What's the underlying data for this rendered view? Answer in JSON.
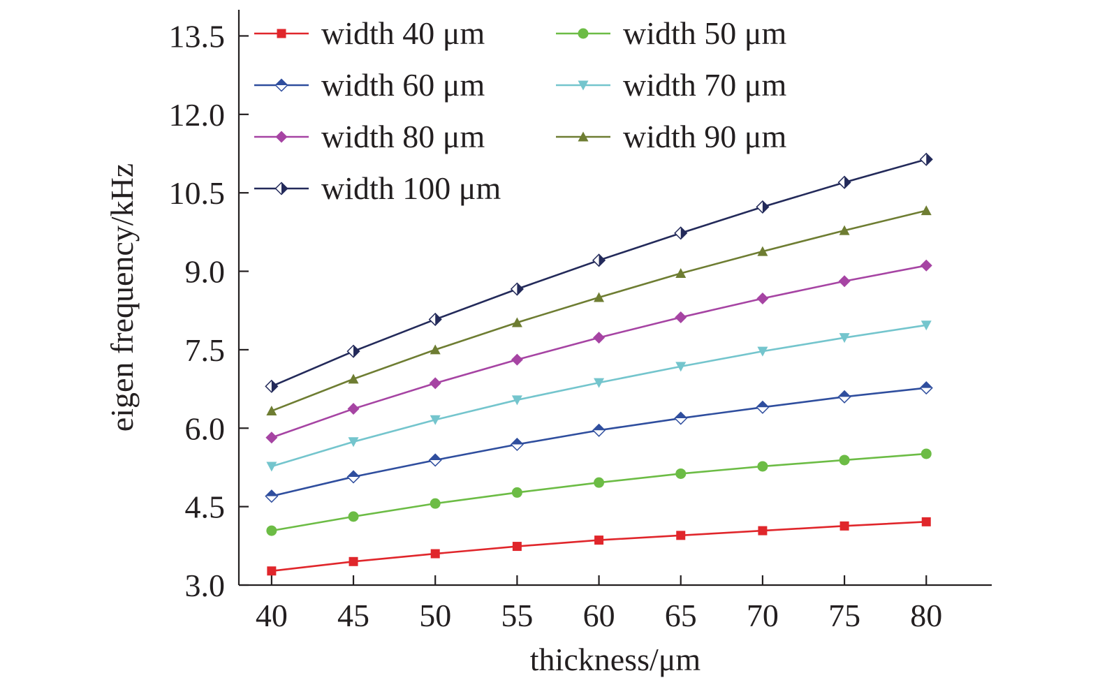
{
  "chart_data": {
    "type": "line",
    "xlabel": "thickness/μm",
    "ylabel": "eigen frequency/kHz",
    "x": [
      40,
      45,
      50,
      55,
      60,
      65,
      70,
      75,
      80
    ],
    "xlim": [
      38,
      84
    ],
    "ylim": [
      3.0,
      14.0
    ],
    "x_ticks": [
      "40",
      "45",
      "50",
      "55",
      "60",
      "65",
      "70",
      "75",
      "80"
    ],
    "y_ticks": [
      "3.0",
      "4.5",
      "6.0",
      "7.5",
      "9.0",
      "10.5",
      "12.0",
      "13.5"
    ],
    "grid": false,
    "legend_position": "top-left",
    "series": [
      {
        "name": "width 40 μm",
        "color": "#e0262b",
        "marker": "square",
        "values": [
          3.27,
          3.45,
          3.6,
          3.74,
          3.86,
          3.95,
          4.04,
          4.13,
          4.21
        ]
      },
      {
        "name": "width 50 μm",
        "color": "#6cbc45",
        "marker": "circle",
        "values": [
          4.04,
          4.31,
          4.56,
          4.77,
          4.96,
          5.13,
          5.27,
          5.39,
          5.51
        ]
      },
      {
        "name": "width 60 μm",
        "color": "#2f4e9e",
        "marker": "diamond-half",
        "values": [
          4.7,
          5.07,
          5.39,
          5.69,
          5.96,
          6.19,
          6.4,
          6.6,
          6.77
        ]
      },
      {
        "name": "width 70 μm",
        "color": "#74c5cd",
        "marker": "triangle-down",
        "values": [
          5.27,
          5.74,
          6.16,
          6.54,
          6.87,
          7.18,
          7.47,
          7.73,
          7.97
        ]
      },
      {
        "name": "width 80 μm",
        "color": "#a644a3",
        "marker": "diamond",
        "values": [
          5.82,
          6.37,
          6.86,
          7.31,
          7.73,
          8.12,
          8.48,
          8.81,
          9.11
        ]
      },
      {
        "name": "width 90 μm",
        "color": "#6e7d32",
        "marker": "triangle-up",
        "values": [
          6.33,
          6.94,
          7.5,
          8.02,
          8.5,
          8.96,
          9.38,
          9.78,
          10.16
        ]
      },
      {
        "name": "width 100 μm",
        "color": "#232a5a",
        "marker": "diamond-half-side",
        "values": [
          6.8,
          7.47,
          8.08,
          8.66,
          9.21,
          9.73,
          10.23,
          10.7,
          11.14
        ]
      }
    ]
  }
}
